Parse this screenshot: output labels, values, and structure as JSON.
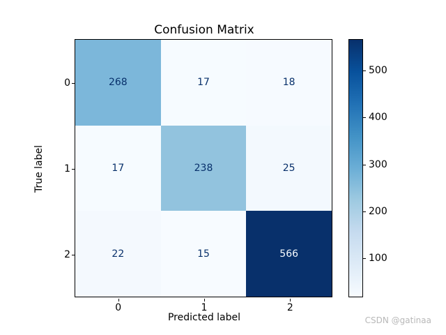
{
  "title": "Confusion Matrix",
  "watermark": "CSDN @gatinaa",
  "chart_data": {
    "type": "heatmap",
    "title": "Confusion Matrix",
    "xlabel": "Predicted label",
    "ylabel": "True label",
    "x_tick_labels": [
      "0",
      "1",
      "2"
    ],
    "y_tick_labels": [
      "0",
      "1",
      "2"
    ],
    "matrix": [
      [
        268,
        17,
        18
      ],
      [
        17,
        238,
        25
      ],
      [
        22,
        15,
        566
      ]
    ],
    "vmin": 15,
    "vmax": 566,
    "colorbar_ticks": [
      100,
      200,
      300,
      400,
      500
    ],
    "colormap": "Blues",
    "colormap_stops": [
      "#f7fbff",
      "#deebf7",
      "#c6dbef",
      "#9ecae1",
      "#6baed6",
      "#4292c6",
      "#2171b5",
      "#08519c",
      "#08306b"
    ],
    "cell_text_dark": "#08306b",
    "cell_text_light": "#f7fbff",
    "legend_position": "right-colorbar",
    "grid": false
  }
}
